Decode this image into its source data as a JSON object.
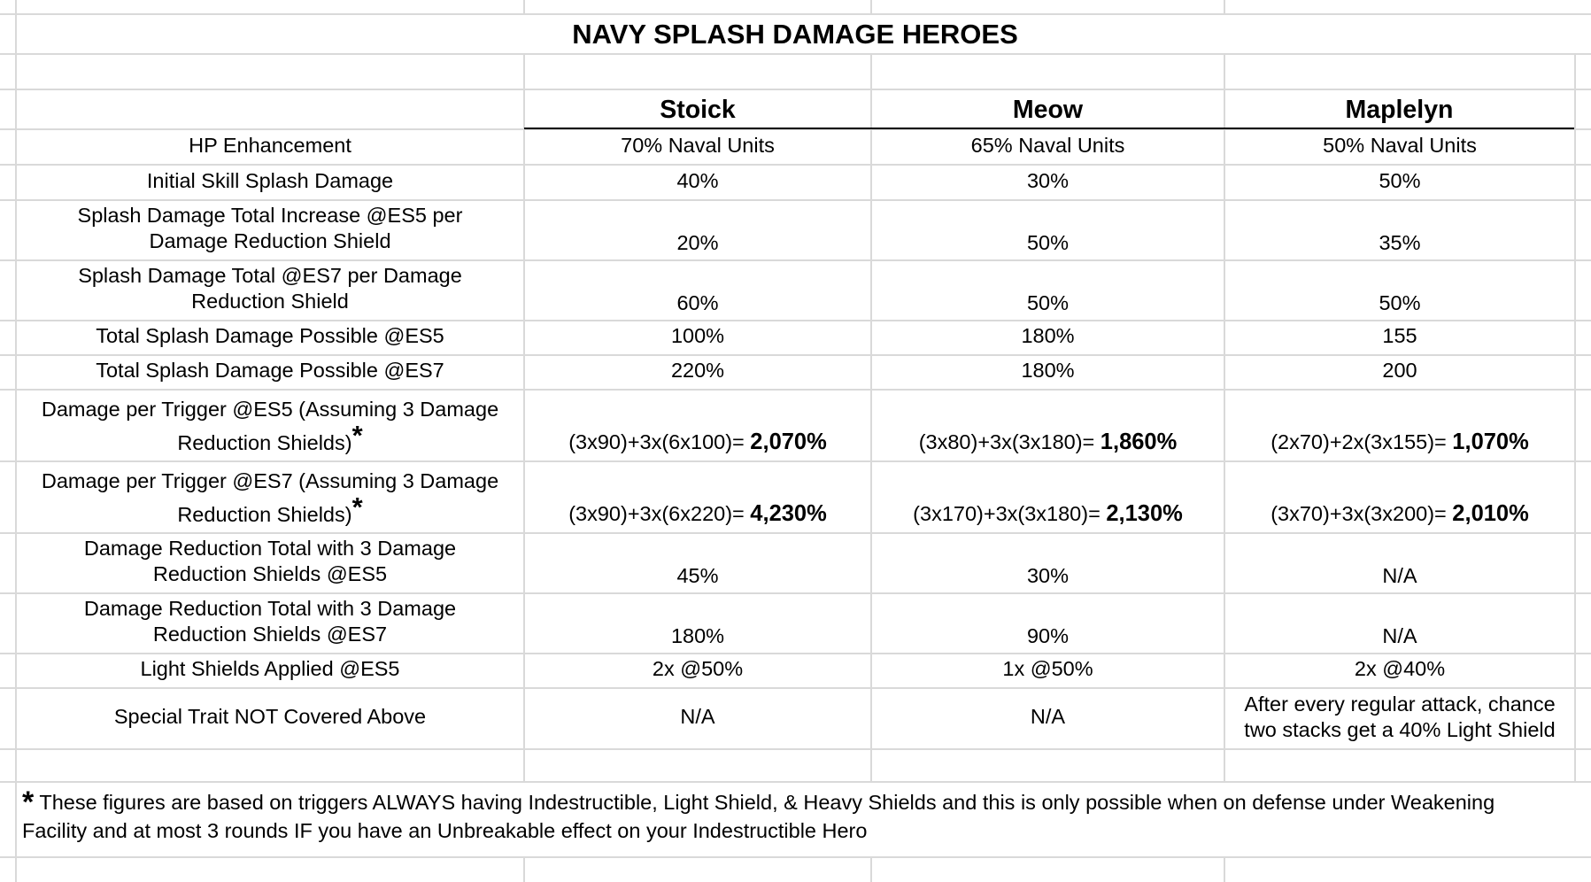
{
  "title": "NAVY SPLASH DAMAGE HEROES",
  "heroes": [
    "Stoick",
    "Meow",
    "Maplelyn"
  ],
  "rows": [
    {
      "label": [
        "HP Enhancement"
      ],
      "values": [
        [
          "70% Naval Units"
        ],
        [
          "65% Naval Units"
        ],
        [
          "50% Naval Units"
        ]
      ]
    },
    {
      "label": [
        "Initial Skill Splash Damage"
      ],
      "values": [
        [
          "40%"
        ],
        [
          "30%"
        ],
        [
          "50%"
        ]
      ]
    },
    {
      "label": [
        "Splash Damage Total Increase @ES5 per",
        "Damage Reduction Shield"
      ],
      "values": [
        [
          "20%"
        ],
        [
          "50%"
        ],
        [
          "35%"
        ]
      ]
    },
    {
      "label": [
        "Splash Damage Total @ES7 per Damage",
        "Reduction Shield"
      ],
      "values": [
        [
          "60%"
        ],
        [
          "50%"
        ],
        [
          "50%"
        ]
      ]
    },
    {
      "label": [
        "Total Splash Damage Possible @ES5"
      ],
      "values": [
        [
          "100%"
        ],
        [
          "180%"
        ],
        [
          "155"
        ]
      ]
    },
    {
      "label": [
        "Total Splash Damage Possible @ES7"
      ],
      "values": [
        [
          "220%"
        ],
        [
          "180%"
        ],
        [
          "200"
        ]
      ]
    },
    {
      "label": [
        "Damage per Trigger @ES5 (Assuming 3 Damage",
        "Reduction Shields)"
      ],
      "star": "*",
      "values": [
        {
          "formula": "(3x90)+3x(6x100)= ",
          "result": "2,070%"
        },
        {
          "formula": "(3x80)+3x(3x180)= ",
          "result": "1,860%"
        },
        {
          "formula": "(2x70)+2x(3x155)= ",
          "result": "1,070%"
        }
      ]
    },
    {
      "label": [
        "Damage per Trigger @ES7 (Assuming 3 Damage",
        "Reduction Shields)"
      ],
      "star": "*",
      "values": [
        {
          "formula": "(3x90)+3x(6x220)= ",
          "result": "4,230%"
        },
        {
          "formula": "(3x170)+3x(3x180)= ",
          "result": "2,130%"
        },
        {
          "formula": "(3x70)+3x(3x200)= ",
          "result": "2,010%"
        }
      ]
    },
    {
      "label": [
        "Damage Reduction Total with 3 Damage",
        "Reduction Shields @ES5"
      ],
      "values": [
        [
          "45%"
        ],
        [
          "30%"
        ],
        [
          "N/A"
        ]
      ]
    },
    {
      "label": [
        "Damage Reduction Total with 3 Damage",
        "Reduction Shields @ES7"
      ],
      "values": [
        [
          "180%"
        ],
        [
          "90%"
        ],
        [
          "N/A"
        ]
      ]
    },
    {
      "label": [
        "Light Shields Applied @ES5"
      ],
      "values": [
        [
          "2x @50%"
        ],
        [
          "1x @50%"
        ],
        [
          "2x @40%"
        ]
      ]
    },
    {
      "label": [
        "Special Trait NOT Covered Above"
      ],
      "values": [
        [
          "N/A"
        ],
        [
          "N/A"
        ],
        [
          "After every regular attack, chance",
          "two stacks get a 40% Light Shield"
        ]
      ]
    }
  ],
  "footnote": {
    "star": "*",
    "text": "These figures are based on triggers ALWAYS having Indestructible, Light Shield, & Heavy Shields and this is only possible when on defense under Weakening Facility and at most 3 rounds IF you have an Unbreakable effect on your Indestructible Hero"
  }
}
